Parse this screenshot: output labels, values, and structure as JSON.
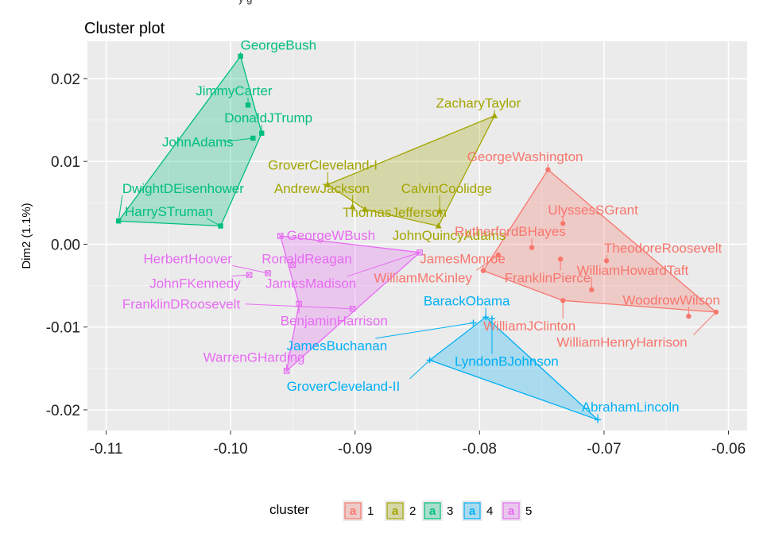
{
  "header_fragment": "y        g",
  "chart_data": {
    "type": "scatter",
    "title": "Cluster plot",
    "xlabel": "",
    "ylabel": "Dim2 (1.1%)",
    "xlim": [
      -0.1115,
      -0.0585
    ],
    "ylim": [
      -0.0225,
      0.0245
    ],
    "x_ticks": [
      -0.11,
      -0.1,
      -0.09,
      -0.08,
      -0.07,
      -0.06
    ],
    "x_tick_labels": [
      "-0.11",
      "-0.10",
      "-0.09",
      "-0.08",
      "-0.07",
      "-0.06"
    ],
    "y_ticks": [
      -0.02,
      -0.01,
      0.0,
      0.01,
      0.02
    ],
    "y_tick_labels": [
      "-0.02",
      "-0.01",
      "0.00",
      "0.01",
      "0.02"
    ],
    "grid": true,
    "legend": {
      "title": "cluster",
      "position": "bottom",
      "key_glyph": "a",
      "entries": [
        "1",
        "2",
        "3",
        "4",
        "5"
      ]
    },
    "clusters": [
      {
        "name": "1",
        "color": "#F8766D",
        "marker": "circle",
        "hull": [
          "GeorgeWashington",
          "WilliamHenryHarrison",
          "WilliamJClinton",
          "JamesMonroe"
        ],
        "points": [
          {
            "label": "GeorgeWashington",
            "x": -0.0745,
            "y": 0.009
          },
          {
            "label": "UlyssesSGrant",
            "x": -0.0733,
            "y": 0.0025
          },
          {
            "label": "RutherfordBHayes",
            "x": -0.0758,
            "y": -0.0004
          },
          {
            "label": "TheodoreRoosevelt",
            "x": -0.0698,
            "y": -0.002
          },
          {
            "label": "JamesMonroe",
            "x": -0.0797,
            "y": -0.0032
          },
          {
            "label": "FranklinPierce",
            "x": -0.0735,
            "y": -0.0018
          },
          {
            "label": "WilliamHowardTaft",
            "x": -0.071,
            "y": -0.0055
          },
          {
            "label": "WilliamMcKinley",
            "x": -0.0785,
            "y": -0.0013
          },
          {
            "label": "WoodrowWilson",
            "x": -0.0632,
            "y": -0.0087
          },
          {
            "label": "WilliamJClinton",
            "x": -0.0733,
            "y": -0.0068
          },
          {
            "label": "WilliamHenryHarrison",
            "x": -0.061,
            "y": -0.0082
          }
        ]
      },
      {
        "name": "2",
        "color": "#A3A500",
        "marker": "triangle",
        "hull": [
          "ZacharyTaylor",
          "JohnQuincyAdams",
          "ThomasJefferson",
          "GroverCleveland-I"
        ],
        "points": [
          {
            "label": "ZacharyTaylor",
            "x": -0.0788,
            "y": 0.0155
          },
          {
            "label": "GroverCleveland-I",
            "x": -0.0922,
            "y": 0.0072
          },
          {
            "label": "AndrewJackson",
            "x": -0.0902,
            "y": 0.0045
          },
          {
            "label": "CalvinCoolidge",
            "x": -0.0832,
            "y": 0.004
          },
          {
            "label": "ThomasJefferson",
            "x": -0.0892,
            "y": 0.0042
          },
          {
            "label": "JohnQuincyAdams",
            "x": -0.0833,
            "y": 0.0022
          }
        ]
      },
      {
        "name": "3",
        "color": "#00BF7D",
        "marker": "square",
        "hull": [
          "GeorgeBush",
          "DonaldJTrump",
          "HarrySTruman",
          "DwightDEisenhower"
        ],
        "points": [
          {
            "label": "GeorgeBush",
            "x": -0.0992,
            "y": 0.0227
          },
          {
            "label": "JimmyCarter",
            "x": -0.0986,
            "y": 0.0168
          },
          {
            "label": "DonaldJTrump",
            "x": -0.0975,
            "y": 0.0134
          },
          {
            "label": "JohnAdams",
            "x": -0.0982,
            "y": 0.0128
          },
          {
            "label": "DwightDEisenhower",
            "x": -0.109,
            "y": 0.0028
          },
          {
            "label": "HarrySTruman",
            "x": -0.1008,
            "y": 0.0022
          }
        ]
      },
      {
        "name": "4",
        "color": "#00B0F6",
        "marker": "plus",
        "hull": [
          "BarackObama",
          "AbrahamLincoln",
          "GroverCleveland-II"
        ],
        "points": [
          {
            "label": "BarackObama",
            "x": -0.0795,
            "y": -0.0088
          },
          {
            "label": "JamesBuchanan",
            "x": -0.0805,
            "y": -0.0095
          },
          {
            "label": "LyndonBJohnson",
            "x": -0.079,
            "y": -0.009
          },
          {
            "label": "GroverCleveland-II",
            "x": -0.084,
            "y": -0.014
          },
          {
            "label": "AbrahamLincoln",
            "x": -0.0705,
            "y": -0.0212
          }
        ]
      },
      {
        "name": "5",
        "color": "#E76BF3",
        "marker": "boxcross",
        "hull": [
          "GeorgeWBush",
          "JamesMadison",
          "WarrenGHarding",
          "BenjaminHarrison"
        ],
        "points": [
          {
            "label": "GeorgeWBush",
            "x": -0.096,
            "y": 0.001
          },
          {
            "label": "RonaldReagan",
            "x": -0.095,
            "y": -0.0025
          },
          {
            "label": "HerbertHoover",
            "x": -0.097,
            "y": -0.0035
          },
          {
            "label": "JohnFKennedy",
            "x": -0.0985,
            "y": -0.0037
          },
          {
            "label": "JamesMadison",
            "x": -0.0848,
            "y": -0.001
          },
          {
            "label": "FranklinDRoosevelt",
            "x": -0.0902,
            "y": -0.0078
          },
          {
            "label": "BenjaminHarrison",
            "x": -0.0945,
            "y": -0.0072
          },
          {
            "label": "WarrenGHarding",
            "x": -0.0955,
            "y": -0.0153
          }
        ]
      }
    ],
    "labels": [
      {
        "text": "GeorgeBush",
        "cluster": 3,
        "point": "GeorgeBush",
        "x": -0.0992,
        "y": 0.0235,
        "anchor": "start"
      },
      {
        "text": "JimmyCarter",
        "cluster": 3,
        "point": "JimmyCarter",
        "x": -0.1028,
        "y": 0.018,
        "anchor": "start"
      },
      {
        "text": "DonaldJTrump",
        "cluster": 3,
        "point": "DonaldJTrump",
        "x": -0.1005,
        "y": 0.0147,
        "anchor": "start"
      },
      {
        "text": "JohnAdams",
        "cluster": 3,
        "point": "JohnAdams",
        "x": -0.1055,
        "y": 0.0118,
        "anchor": "start"
      },
      {
        "text": "DwightDEisenhower",
        "cluster": 3,
        "point": "DwightDEisenhower",
        "x": -0.1087,
        "y": 0.0062,
        "anchor": "start"
      },
      {
        "text": "HarrySTruman",
        "cluster": 3,
        "point": "HarrySTruman",
        "x": -0.1085,
        "y": 0.0034,
        "anchor": "start"
      },
      {
        "text": "ZacharyTaylor",
        "cluster": 2,
        "point": "ZacharyTaylor",
        "x": -0.0835,
        "y": 0.0165,
        "anchor": "start"
      },
      {
        "text": "GroverCleveland-I",
        "cluster": 2,
        "point": "GroverCleveland-I",
        "x": -0.097,
        "y": 0.009,
        "anchor": "start"
      },
      {
        "text": "AndrewJackson",
        "cluster": 2,
        "point": "AndrewJackson",
        "x": -0.0965,
        "y": 0.0062,
        "anchor": "start"
      },
      {
        "text": "CalvinCoolidge",
        "cluster": 2,
        "point": "CalvinCoolidge",
        "x": -0.0863,
        "y": 0.0062,
        "anchor": "start"
      },
      {
        "text": "ThomasJefferson",
        "cluster": 2,
        "point": "ThomasJefferson",
        "x": -0.091,
        "y": 0.0033,
        "anchor": "start"
      },
      {
        "text": "JohnQuincyAdams",
        "cluster": 2,
        "point": "JohnQuincyAdams",
        "x": -0.087,
        "y": 0.0005,
        "anchor": "start"
      },
      {
        "text": "GeorgeWashington",
        "cluster": 1,
        "point": "GeorgeWashington",
        "x": -0.081,
        "y": 0.01,
        "anchor": "start"
      },
      {
        "text": "UlyssesSGrant",
        "cluster": 1,
        "point": "UlyssesSGrant",
        "x": -0.0745,
        "y": 0.0036,
        "anchor": "start"
      },
      {
        "text": "RutherfordBHayes",
        "cluster": 1,
        "point": "RutherfordBHayes",
        "x": -0.082,
        "y": 0.001,
        "anchor": "start"
      },
      {
        "text": "TheodoreRoosevelt",
        "cluster": 1,
        "point": "TheodoreRoosevelt",
        "x": -0.07,
        "y": -0.001,
        "anchor": "start"
      },
      {
        "text": "JamesMonroe",
        "cluster": 1,
        "point": "JamesMonroe",
        "x": -0.0848,
        "y": -0.0023,
        "anchor": "start"
      },
      {
        "text": "WilliamHowardTaft",
        "cluster": 1,
        "point": "WilliamHowardTaft",
        "x": -0.0722,
        "y": -0.0037,
        "anchor": "start"
      },
      {
        "text": "WilliamMcKinley",
        "cluster": 1,
        "point": "WilliamMcKinley",
        "x": -0.0885,
        "y": -0.0046,
        "anchor": "start"
      },
      {
        "text": "FranklinPierce",
        "cluster": 1,
        "point": "FranklinPierce",
        "x": -0.078,
        "y": -0.0046,
        "anchor": "start"
      },
      {
        "text": "WoodrowWilson",
        "cluster": 1,
        "point": "WoodrowWilson",
        "x": -0.0685,
        "y": -0.0073,
        "anchor": "start"
      },
      {
        "text": "WilliamJClinton",
        "cluster": 1,
        "point": "WilliamJClinton",
        "x": -0.0797,
        "y": -0.0104,
        "anchor": "start"
      },
      {
        "text": "WilliamHenryHarrison",
        "cluster": 1,
        "point": "WilliamHenryHarrison",
        "x": -0.0738,
        "y": -0.0124,
        "anchor": "start"
      },
      {
        "text": "GeorgeWBush",
        "cluster": 5,
        "point": "GeorgeWBush",
        "x": -0.0955,
        "y": 0.0005,
        "anchor": "start"
      },
      {
        "text": "RonaldReagan",
        "cluster": 5,
        "point": "RonaldReagan",
        "x": -0.0975,
        "y": -0.0023,
        "anchor": "start"
      },
      {
        "text": "HerbertHoover",
        "cluster": 5,
        "point": "HerbertHoover",
        "x": -0.107,
        "y": -0.0023,
        "anchor": "start"
      },
      {
        "text": "JohnFKennedy",
        "cluster": 5,
        "point": "JohnFKennedy",
        "x": -0.1065,
        "y": -0.0053,
        "anchor": "start"
      },
      {
        "text": "JamesMadison",
        "cluster": 5,
        "point": "JamesMadison",
        "x": -0.0972,
        "y": -0.0053,
        "anchor": "start"
      },
      {
        "text": "FranklinDRoosevelt",
        "cluster": 5,
        "point": "FranklinDRoosevelt",
        "x": -0.1087,
        "y": -0.0078,
        "anchor": "start"
      },
      {
        "text": "BenjaminHarrison",
        "cluster": 5,
        "point": "BenjaminHarrison",
        "x": -0.096,
        "y": -0.0098,
        "anchor": "start"
      },
      {
        "text": "WarrenGHarding",
        "cluster": 5,
        "point": "WarrenGHarding",
        "x": -0.1022,
        "y": -0.0142,
        "anchor": "start"
      },
      {
        "text": "BarackObama",
        "cluster": 4,
        "point": "BarackObama",
        "x": -0.0845,
        "y": -0.0074,
        "anchor": "start"
      },
      {
        "text": "JamesBuchanan",
        "cluster": 4,
        "point": "JamesBuchanan",
        "x": -0.0955,
        "y": -0.0128,
        "anchor": "start"
      },
      {
        "text": "LyndonBJohnson",
        "cluster": 4,
        "point": "LyndonBJohnson",
        "x": -0.082,
        "y": -0.0147,
        "anchor": "start"
      },
      {
        "text": "GroverCleveland-II",
        "cluster": 4,
        "point": "GroverCleveland-II",
        "x": -0.0955,
        "y": -0.0177,
        "anchor": "start"
      },
      {
        "text": "AbrahamLincoln",
        "cluster": 4,
        "point": "AbrahamLincoln",
        "x": -0.0718,
        "y": -0.0202,
        "anchor": "start"
      }
    ]
  }
}
